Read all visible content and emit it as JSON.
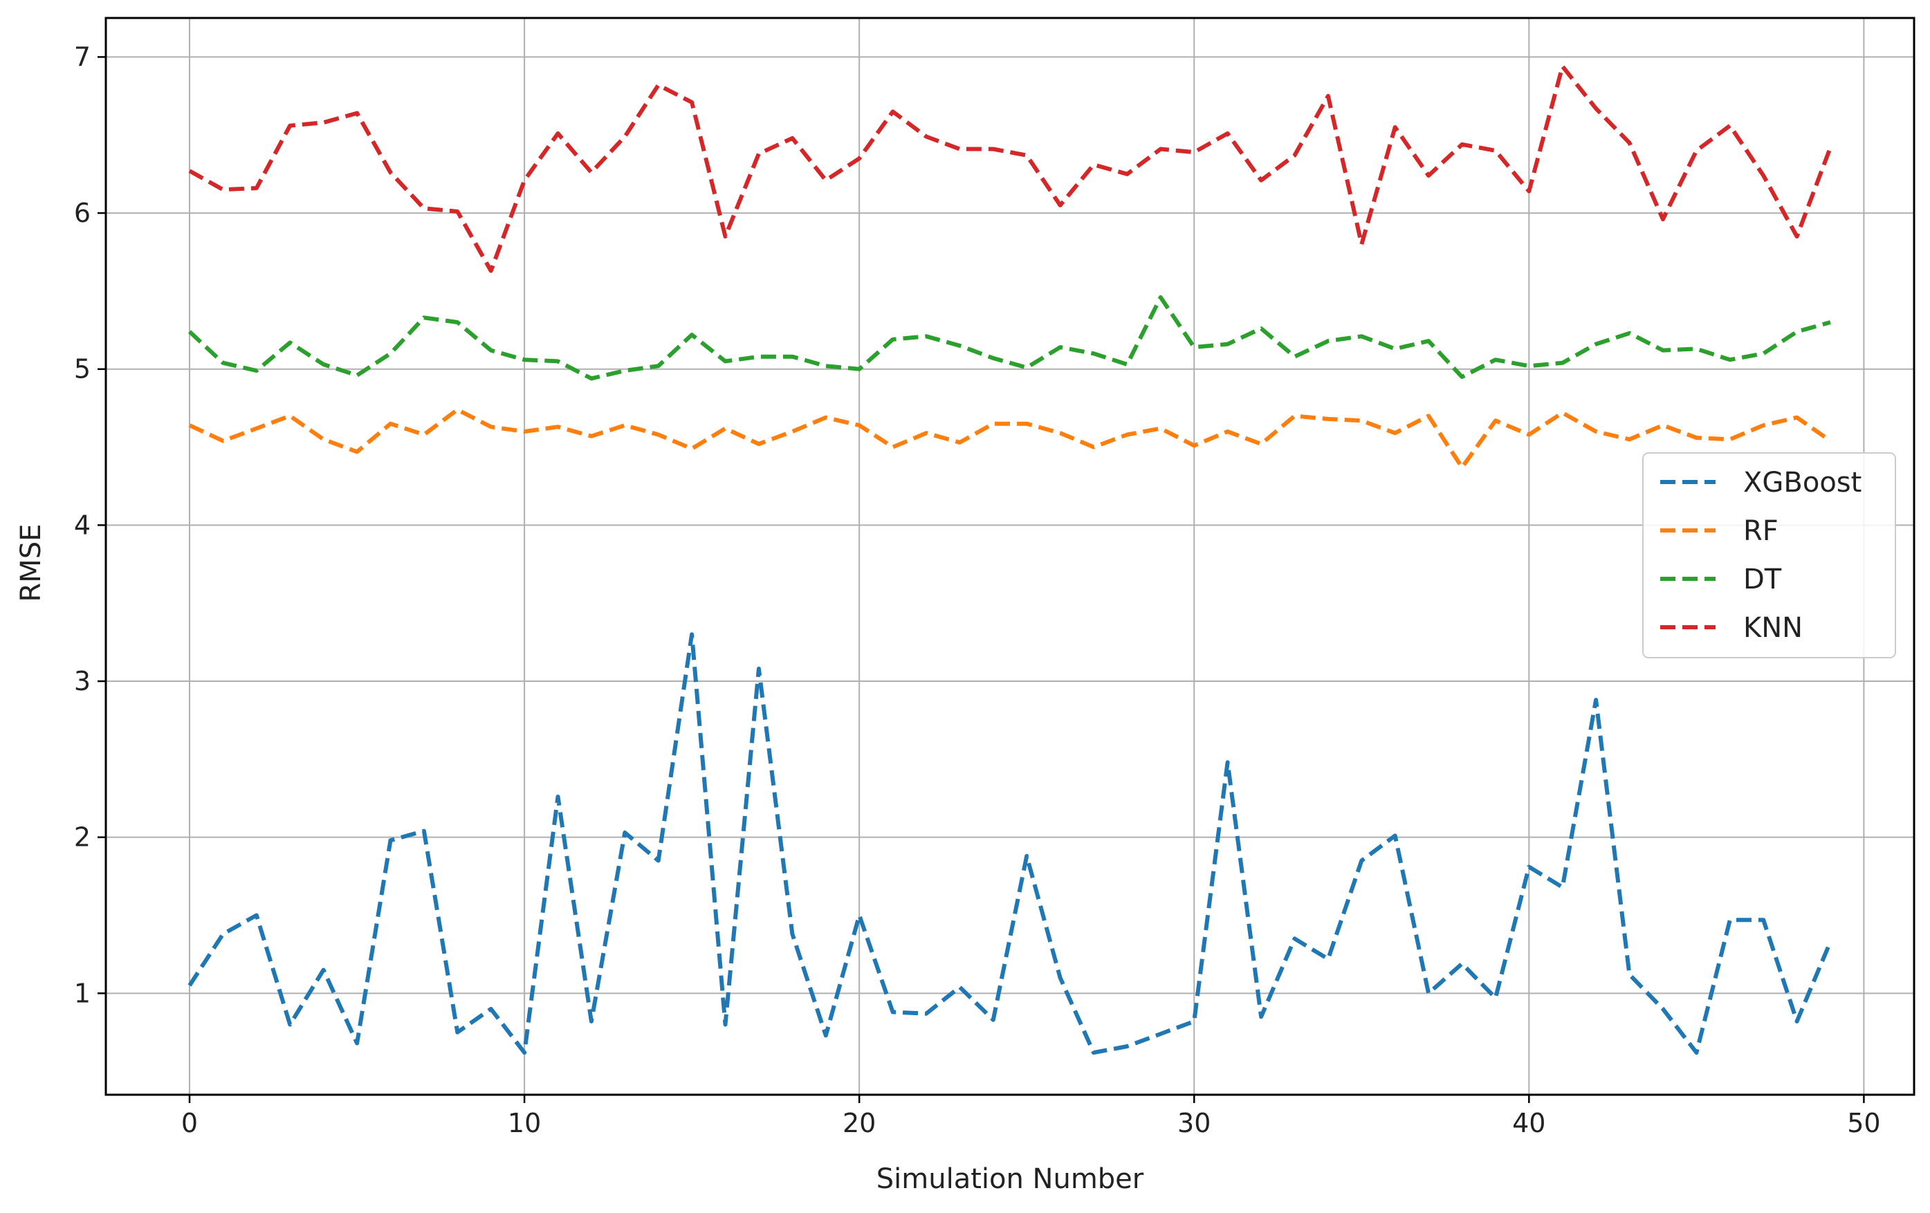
{
  "chart_data": {
    "type": "line",
    "title": "",
    "xlabel": "Simulation Number",
    "ylabel": "RMSE",
    "xlim": [
      -2.5,
      51.5
    ],
    "ylim": [
      0.35,
      7.25
    ],
    "xticks": [
      0,
      10,
      20,
      30,
      40,
      50
    ],
    "yticks": [
      1,
      2,
      3,
      4,
      5,
      6,
      7
    ],
    "grid": true,
    "legend_position": "center-right",
    "line_style": "dashed",
    "x": [
      0,
      1,
      2,
      3,
      4,
      5,
      6,
      7,
      8,
      9,
      10,
      11,
      12,
      13,
      14,
      15,
      16,
      17,
      18,
      19,
      20,
      21,
      22,
      23,
      24,
      25,
      26,
      27,
      28,
      29,
      30,
      31,
      32,
      33,
      34,
      35,
      36,
      37,
      38,
      39,
      40,
      41,
      42,
      43,
      44,
      45,
      46,
      47,
      48,
      49
    ],
    "series": [
      {
        "name": "XGBoost",
        "color": "#1f77b4",
        "values": [
          1.05,
          1.38,
          1.5,
          0.8,
          1.15,
          0.68,
          1.98,
          2.04,
          0.75,
          0.9,
          0.62,
          2.26,
          0.82,
          2.03,
          1.85,
          3.3,
          0.8,
          3.08,
          1.38,
          0.73,
          1.5,
          0.88,
          0.87,
          1.04,
          0.83,
          1.88,
          1.1,
          0.62,
          0.66,
          0.74,
          0.82,
          2.48,
          0.85,
          1.35,
          1.22,
          1.85,
          2.01,
          1.0,
          1.19,
          0.97,
          1.81,
          1.68,
          2.88,
          1.12,
          0.9,
          0.62,
          1.47,
          1.47,
          0.82,
          1.33
        ]
      },
      {
        "name": "RF",
        "color": "#ff7f0e",
        "values": [
          4.64,
          4.54,
          4.62,
          4.7,
          4.55,
          4.47,
          4.65,
          4.58,
          4.74,
          4.63,
          4.6,
          4.63,
          4.57,
          4.64,
          4.58,
          4.49,
          4.62,
          4.52,
          4.6,
          4.69,
          4.64,
          4.5,
          4.59,
          4.53,
          4.65,
          4.65,
          4.59,
          4.5,
          4.58,
          4.62,
          4.51,
          4.6,
          4.52,
          4.7,
          4.68,
          4.67,
          4.59,
          4.7,
          4.37,
          4.67,
          4.58,
          4.72,
          4.6,
          4.55,
          4.64,
          4.56,
          4.55,
          4.64,
          4.69,
          4.54
        ]
      },
      {
        "name": "DT",
        "color": "#2ca02c",
        "values": [
          5.24,
          5.04,
          4.99,
          5.17,
          5.03,
          4.96,
          5.1,
          5.33,
          5.3,
          5.12,
          5.06,
          5.05,
          4.94,
          4.99,
          5.02,
          5.22,
          5.05,
          5.08,
          5.08,
          5.02,
          5.0,
          5.19,
          5.21,
          5.15,
          5.07,
          5.01,
          5.14,
          5.1,
          5.03,
          5.46,
          5.14,
          5.16,
          5.26,
          5.08,
          5.18,
          5.21,
          5.13,
          5.18,
          4.95,
          5.06,
          5.02,
          5.04,
          5.16,
          5.23,
          5.12,
          5.13,
          5.06,
          5.1,
          5.24,
          5.3
        ]
      },
      {
        "name": "KNN",
        "color": "#d62728",
        "values": [
          6.27,
          6.15,
          6.16,
          6.56,
          6.58,
          6.64,
          6.26,
          6.03,
          6.01,
          5.63,
          6.21,
          6.51,
          6.26,
          6.49,
          6.82,
          6.71,
          5.85,
          6.38,
          6.48,
          6.21,
          6.35,
          6.65,
          6.49,
          6.41,
          6.41,
          6.37,
          6.05,
          6.31,
          6.25,
          6.41,
          6.39,
          6.51,
          6.21,
          6.37,
          6.75,
          5.8,
          6.55,
          6.24,
          6.44,
          6.4,
          6.14,
          6.94,
          6.67,
          6.45,
          5.96,
          6.4,
          6.56,
          6.24,
          5.85,
          6.42
        ]
      }
    ]
  }
}
